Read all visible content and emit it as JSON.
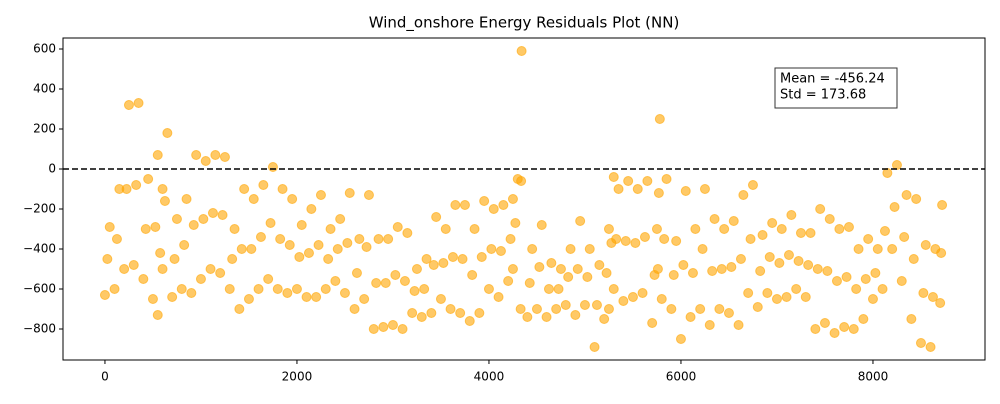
{
  "chart_data": {
    "type": "scatter",
    "title": "Wind_onshore Energy Residuals Plot (NN)",
    "color": "#ffa500",
    "alpha": 0.6,
    "xlim": [
      -437,
      9167
    ],
    "ylim": [
      -955,
      655
    ],
    "xticks": [
      0,
      2000,
      4000,
      6000,
      8000
    ],
    "yticks": [
      {
        "value": -800,
        "label": "−800"
      },
      {
        "value": -600,
        "label": "−600"
      },
      {
        "value": -400,
        "label": "−400"
      },
      {
        "value": -200,
        "label": "−200"
      },
      0,
      200,
      400,
      600
    ],
    "hline": 0,
    "annotation": [
      "Mean = -456.24",
      "Std = 173.68"
    ],
    "x": [
      0,
      25,
      50,
      100,
      125,
      150,
      200,
      225,
      250,
      300,
      325,
      350,
      400,
      425,
      450,
      500,
      525,
      550,
      550,
      575,
      600,
      600,
      625,
      650,
      700,
      725,
      750,
      800,
      825,
      850,
      900,
      925,
      950,
      1000,
      1025,
      1050,
      1100,
      1125,
      1150,
      1200,
      1225,
      1250,
      1300,
      1325,
      1350,
      1400,
      1425,
      1450,
      1500,
      1525,
      1550,
      1600,
      1625,
      1650,
      1700,
      1725,
      1750,
      1800,
      1825,
      1850,
      1900,
      1925,
      1950,
      2000,
      2025,
      2050,
      2100,
      2125,
      2150,
      2200,
      2225,
      2250,
      2300,
      2325,
      2350,
      2400,
      2425,
      2450,
      2500,
      2525,
      2550,
      2600,
      2625,
      2650,
      2700,
      2725,
      2750,
      2800,
      2825,
      2850,
      2900,
      2925,
      2950,
      3000,
      3025,
      3050,
      3100,
      3125,
      3150,
      3200,
      3225,
      3250,
      3300,
      3325,
      3350,
      3400,
      3425,
      3450,
      3500,
      3525,
      3550,
      3600,
      3625,
      3650,
      3700,
      3725,
      3750,
      3800,
      3825,
      3850,
      3900,
      3925,
      3950,
      4000,
      4025,
      4050,
      4100,
      4125,
      4150,
      4200,
      4225,
      4250,
      4250,
      4275,
      4300,
      4330,
      4335,
      4340,
      4400,
      4425,
      4450,
      4500,
      4525,
      4550,
      4600,
      4625,
      4650,
      4700,
      4725,
      4750,
      4800,
      4825,
      4850,
      4900,
      4925,
      4950,
      5000,
      5025,
      5050,
      5100,
      5125,
      5150,
      5200,
      5225,
      5250,
      5250,
      5275,
      5300,
      5300,
      5325,
      5350,
      5400,
      5425,
      5450,
      5500,
      5525,
      5550,
      5600,
      5625,
      5650,
      5700,
      5725,
      5750,
      5760,
      5770,
      5780,
      5800,
      5825,
      5850,
      5900,
      5925,
      5950,
      6000,
      6025,
      6050,
      6100,
      6125,
      6150,
      6200,
      6225,
      6250,
      6300,
      6325,
      6350,
      6400,
      6425,
      6450,
      6500,
      6525,
      6550,
      6600,
      6625,
      6650,
      6700,
      6725,
      6750,
      6800,
      6825,
      6850,
      6900,
      6925,
      6950,
      7000,
      7025,
      7050,
      7100,
      7125,
      7150,
      7200,
      7225,
      7250,
      7300,
      7325,
      7350,
      7400,
      7425,
      7450,
      7500,
      7525,
      7550,
      7600,
      7625,
      7650,
      7700,
      7725,
      7750,
      7800,
      7825,
      7850,
      7900,
      7925,
      7950,
      8000,
      8025,
      8050,
      8100,
      8125,
      8150,
      8200,
      8225,
      8250,
      8300,
      8325,
      8350,
      8400,
      8425,
      8450,
      8500,
      8525,
      8550,
      8600,
      8625,
      8650,
      8700,
      8710,
      8720
    ],
    "y": [
      -630,
      -450,
      -290,
      -600,
      -350,
      -100,
      -500,
      -100,
      320,
      -480,
      -80,
      330,
      -550,
      -300,
      -50,
      -650,
      -290,
      70,
      -730,
      -420,
      -100,
      -500,
      -160,
      180,
      -640,
      -450,
      -250,
      -600,
      -380,
      -150,
      -620,
      -280,
      70,
      -550,
      -250,
      40,
      -500,
      -220,
      70,
      -520,
      -230,
      60,
      -600,
      -450,
      -300,
      -700,
      -400,
      -100,
      -650,
      -400,
      -150,
      -600,
      -340,
      -80,
      -550,
      -270,
      10,
      -600,
      -350,
      -100,
      -620,
      -380,
      -150,
      -600,
      -440,
      -280,
      -640,
      -420,
      -200,
      -640,
      -380,
      -130,
      -600,
      -450,
      -300,
      -560,
      -400,
      -250,
      -620,
      -370,
      -120,
      -700,
      -520,
      -350,
      -650,
      -390,
      -130,
      -800,
      -570,
      -350,
      -790,
      -570,
      -350,
      -780,
      -530,
      -290,
      -800,
      -560,
      -320,
      -720,
      -610,
      -500,
      -740,
      -600,
      -450,
      -720,
      -480,
      -240,
      -650,
      -470,
      -300,
      -700,
      -440,
      -180,
      -720,
      -450,
      -180,
      -760,
      -530,
      -300,
      -720,
      -440,
      -160,
      -600,
      -400,
      -200,
      -640,
      -410,
      -180,
      -560,
      -350,
      -150,
      -500,
      -270,
      -50,
      -700,
      -60,
      590,
      -740,
      -570,
      -400,
      -700,
      -490,
      -280,
      -740,
      -600,
      -470,
      -700,
      -600,
      -500,
      -680,
      -540,
      -400,
      -730,
      -500,
      -260,
      -680,
      -540,
      -400,
      -890,
      -680,
      -480,
      -750,
      -520,
      -300,
      -700,
      -370,
      -40,
      -600,
      -350,
      -100,
      -660,
      -360,
      -60,
      -640,
      -370,
      -100,
      -620,
      -340,
      -60,
      -770,
      -530,
      -300,
      -500,
      -120,
      250,
      -650,
      -350,
      -50,
      -700,
      -530,
      -360,
      -850,
      -480,
      -110,
      -740,
      -520,
      -300,
      -700,
      -400,
      -100,
      -780,
      -510,
      -250,
      -700,
      -500,
      -300,
      -720,
      -490,
      -260,
      -780,
      -450,
      -130,
      -620,
      -350,
      -80,
      -690,
      -510,
      -330,
      -620,
      -440,
      -270,
      -650,
      -470,
      -300,
      -640,
      -430,
      -230,
      -600,
      -460,
      -320,
      -640,
      -480,
      -320,
      -800,
      -500,
      -200,
      -770,
      -510,
      -250,
      -820,
      -560,
      -300,
      -790,
      -540,
      -290,
      -800,
      -600,
      -400,
      -750,
      -550,
      -350,
      -650,
      -520,
      -400,
      -600,
      -310,
      -20,
      -400,
      -190,
      20,
      -560,
      -340,
      -130,
      -750,
      -450,
      -150,
      -870,
      -620,
      -380,
      -890,
      -640,
      -400,
      -670,
      -420,
      -180
    ]
  }
}
